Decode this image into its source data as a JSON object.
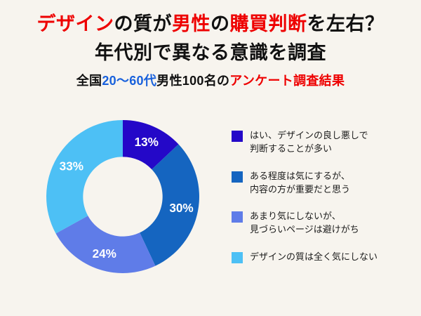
{
  "theme": {
    "background": "#F7F4EE",
    "red": "#EE0000",
    "blue": "#1961DC",
    "text": "#111111",
    "label_color": "#FFFFFF"
  },
  "title": {
    "line1_segments": [
      {
        "text": "デザイン",
        "color": "red"
      },
      {
        "text": "の質が",
        "color": "text"
      },
      {
        "text": "男性",
        "color": "red"
      },
      {
        "text": "の",
        "color": "text"
      },
      {
        "text": "購買判断",
        "color": "red"
      },
      {
        "text": "を左右？",
        "color": "text"
      }
    ],
    "line2": "年代別で異なる意識を調査"
  },
  "subtitle": {
    "segments": [
      {
        "text": "全国",
        "color": "text"
      },
      {
        "text": "20〜60代",
        "color": "blue"
      },
      {
        "text": "男性100名の",
        "color": "text"
      },
      {
        "text": "アンケート調査結果",
        "color": "red"
      }
    ]
  },
  "chart_data": {
    "type": "pie",
    "variant": "donut",
    "start_angle_deg": 0,
    "direction": "clockwise",
    "inner_radius_ratio": 0.52,
    "values": [
      13,
      30,
      24,
      33
    ],
    "unit": "%",
    "value_labels": [
      "13%",
      "30%",
      "24%",
      "33%"
    ],
    "colors": [
      "#2408C8",
      "#1565C0",
      "#5F7CE8",
      "#4DC0F5"
    ],
    "labels": [
      "はい、デザインの良し悪しで判断することが多い",
      "ある程度は気にするが、内容の方が重要だと思う",
      "あまり気にしないが、見づらいページは避けがち",
      "デザインの質は全く気にしない"
    ],
    "legend_lines": [
      [
        "はい、デザインの良し悪しで",
        "判断することが多い"
      ],
      [
        "ある程度は気にするが、",
        "内容の方が重要だと思う"
      ],
      [
        "あまり気にしないが、",
        "見づらいページは避けがち"
      ],
      [
        "デザインの質は全く気にしない"
      ]
    ],
    "legend_position": "right"
  }
}
